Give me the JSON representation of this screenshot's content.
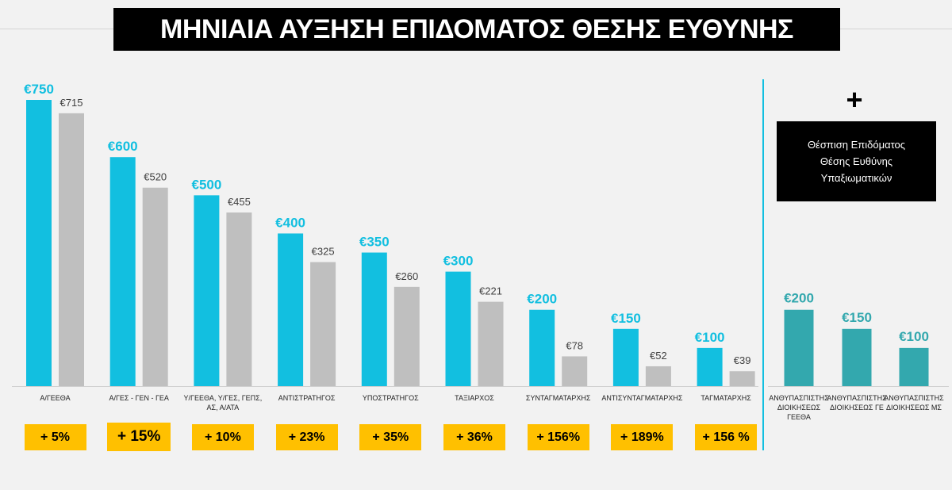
{
  "title": "ΜΗΝΙΑΙΑ ΑΥΞΗΣΗ ΕΠΙΔΟΜΑΤΟΣ ΘΕΣΗΣ ΕΥΘΥΝΗΣ",
  "colors": {
    "new": "#12bfe0",
    "old": "#bfbfbf",
    "side": "#33a8ae",
    "highlight": "#ffc000"
  },
  "chart_data": [
    {
      "type": "bar",
      "categories": [
        "Α/ΓΕΕΘΑ",
        "Α/ΓΕΣ - ΓΕΝ - ΓΕΑ",
        "Υ/ΓΕΕΘΑ, Υ/ΓΕΣ, ΓΕΠΣ, ΑΣ, Α/ΑΤΑ",
        "ΑΝΤΙΣΤΡΑΤΗΓΟΣ",
        "ΥΠΟΣΤΡΑΤΗΓΟΣ",
        "ΤΑΞΙΑΡΧΟΣ",
        "ΣΥΝΤΑΓΜΑΤΑΡΧΗΣ",
        "ΑΝΤΙΣΥΝΤΑΓΜΑΤΑΡΧΗΣ",
        "ΤΑΓΜΑΤΑΡΧΗΣ"
      ],
      "series": [
        {
          "name": "new",
          "values": [
            750,
            600,
            500,
            400,
            350,
            300,
            200,
            150,
            100
          ],
          "labels": [
            "€750",
            "€600",
            "€500",
            "€400",
            "€350",
            "€300",
            "€200",
            "€150",
            "€100"
          ]
        },
        {
          "name": "old",
          "values": [
            715,
            520,
            455,
            325,
            260,
            221,
            78,
            52,
            39
          ],
          "labels": [
            "€715",
            "€520",
            "€455",
            "€325",
            "€260",
            "€221",
            "€78",
            "€52",
            "€39"
          ]
        }
      ],
      "increases": [
        "+ 5%",
        "+ 15%",
        "+ 10%",
        "+ 23%",
        "+ 35%",
        "+ 36%",
        "+ 156%",
        "+ 189%",
        "+ 156 %"
      ],
      "ylim": [
        0,
        750
      ]
    },
    {
      "type": "bar",
      "categories": [
        "ΑΝΘΥΠΑΣΠΙΣΤΗΣ ΔΙΟΙΚΗΣΕΩΣ ΓΕΕΘΑ",
        "ΑΝΘΥΠΑΣΠΙΣΤΗΣ ΔΙΟΙΚΗΣΕΩΣ ΓΕ",
        "ΑΝΘΥΠΑΣΠΙΣΤΗΣ ΔΙΟΙΚΗΣΕΩΣ ΜΣ"
      ],
      "values": [
        200,
        150,
        100
      ],
      "labels": [
        "€200",
        "€150",
        "€100"
      ],
      "ylim": [
        0,
        750
      ]
    }
  ],
  "side_panel": {
    "plus": "+",
    "lines": [
      "Θέσπιση Επιδόματος",
      "Θέσης Ευθύνης",
      "Υπαξιωματικών"
    ]
  }
}
